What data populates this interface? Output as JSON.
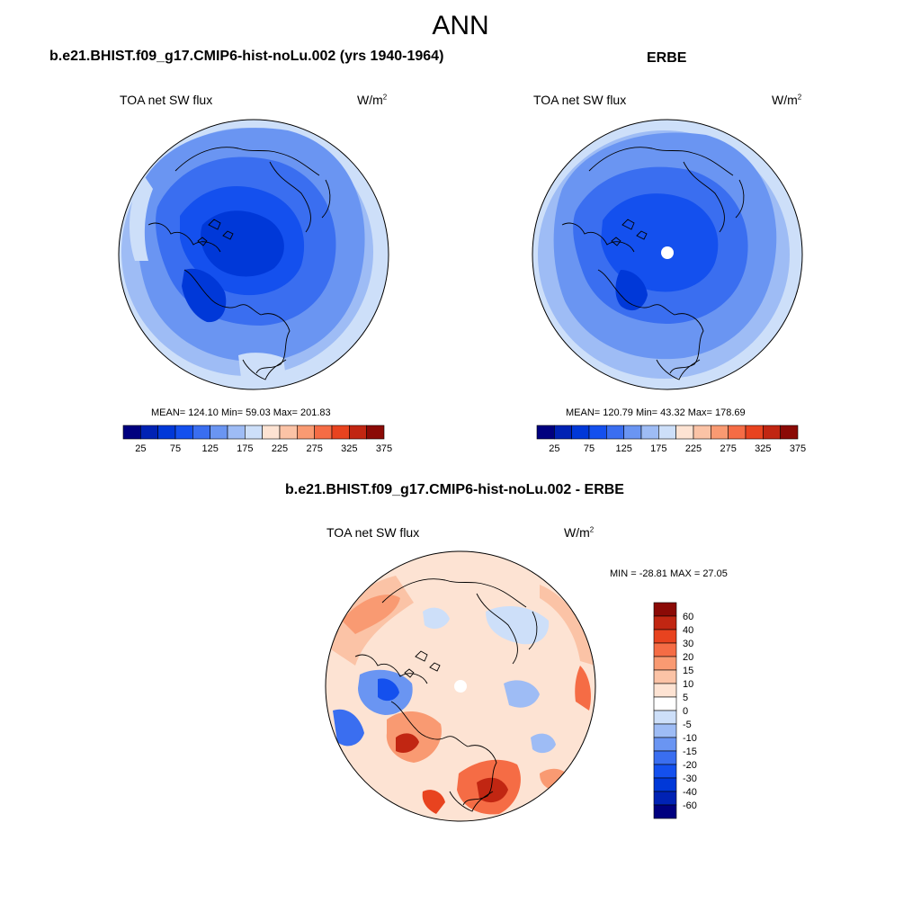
{
  "main_title": "ANN",
  "panels": [
    {
      "title": "b.e21.BHIST.f09_g17.CMIP6-hist-noLu.002 (yrs 1940-1964)",
      "variable": "TOA net SW flux",
      "units_base": "W/m",
      "units_exp": "2",
      "stats": "MEAN= 124.10  Min=  59.03  Max= 201.83",
      "mean": 124.1,
      "min": 59.03,
      "max": 201.83,
      "colorbar_labels": [
        "25",
        "75",
        "125",
        "175",
        "225",
        "275",
        "325",
        "375"
      ]
    },
    {
      "title": "ERBE",
      "variable": "TOA net SW flux",
      "units_base": "W/m",
      "units_exp": "2",
      "stats": "MEAN= 120.79  Min=  43.32  Max= 178.69",
      "mean": 120.79,
      "min": 43.32,
      "max": 178.69,
      "colorbar_labels": [
        "25",
        "75",
        "125",
        "175",
        "225",
        "275",
        "325",
        "375"
      ]
    },
    {
      "title": "b.e21.BHIST.f09_g17.CMIP6-hist-noLu.002 - ERBE",
      "variable": "TOA net SW flux",
      "units_base": "W/m",
      "units_exp": "2",
      "stats": "MIN = -28.81 MAX =  27.05",
      "min": -28.81,
      "max": 27.05,
      "colorbar_labels": [
        "60",
        "40",
        "30",
        "20",
        "15",
        "10",
        "5",
        "0",
        "-5",
        "-10",
        "-15",
        "-20",
        "-30",
        "-40",
        "-60"
      ]
    }
  ],
  "colors": {
    "abs_scale": [
      "#00007f",
      "#0022b4",
      "#0038d8",
      "#1450ee",
      "#3a6ef0",
      "#6a95f2",
      "#9ebcf5",
      "#cddff9",
      "#fde3d3",
      "#fbc3a6",
      "#f99a72",
      "#f56c45",
      "#e8431f",
      "#c12612",
      "#8b0a06"
    ],
    "diff_scale": [
      "#00007f",
      "#0022b4",
      "#0038d8",
      "#1450ee",
      "#3a6ef0",
      "#6a95f2",
      "#9ebcf5",
      "#cddff9",
      "#ffffff",
      "#fde3d3",
      "#fbc3a6",
      "#f99a72",
      "#f56c45",
      "#e8431f",
      "#c12612",
      "#8b0a06"
    ]
  }
}
